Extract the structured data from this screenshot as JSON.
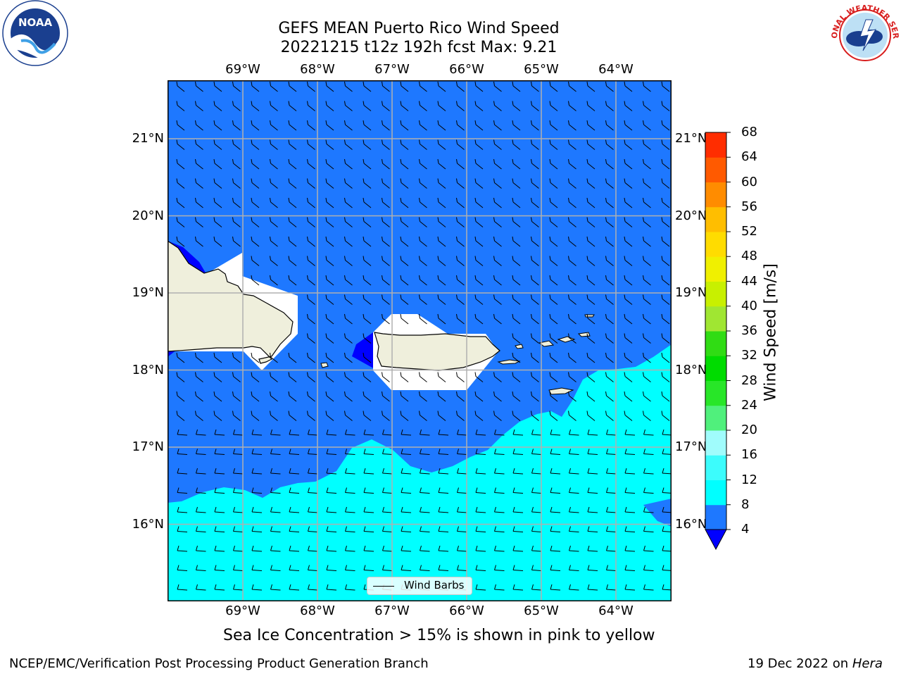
{
  "header": {
    "title_line1": "GEFS MEAN Puerto Rico Wind Speed",
    "title_line2": "20221215 t12z 192h fcst   Max: 9.21"
  },
  "logos": {
    "noaa_text": "NOAA",
    "nws_text": "NATIONAL WEATHER SERVICE"
  },
  "axes": {
    "lon_labels": [
      "69°W",
      "68°W",
      "67°W",
      "66°W",
      "65°W",
      "64°W"
    ],
    "lat_labels": [
      "21°N",
      "20°N",
      "19°N",
      "18°N",
      "17°N",
      "16°N"
    ],
    "lon_values": [
      -69,
      -68,
      -67,
      -66,
      -65,
      -64
    ],
    "lat_values": [
      21,
      20,
      19,
      18,
      17,
      16
    ]
  },
  "colorbar": {
    "label": "Wind Speed [m/s]",
    "ticks": [
      "68",
      "64",
      "60",
      "56",
      "52",
      "48",
      "44",
      "40",
      "36",
      "32",
      "28",
      "24",
      "20",
      "16",
      "12",
      "8",
      "4"
    ],
    "levels": [
      4,
      8,
      12,
      16,
      20,
      24,
      28,
      32,
      36,
      40,
      44,
      48,
      52,
      56,
      60,
      64,
      68
    ],
    "colors": [
      "#1e78ff",
      "#00ffff",
      "#3cfcfc",
      "#a0fcfc",
      "#50f07c",
      "#28e628",
      "#00dc00",
      "#30dc14",
      "#a0e632",
      "#c8f000",
      "#f0f000",
      "#ffdc00",
      "#ffbe00",
      "#ff8c00",
      "#ff5a00",
      "#ff2d00"
    ],
    "under_color": "#0000ff"
  },
  "legend": {
    "label": "Wind Barbs"
  },
  "caption": "Sea Ice Concentration > 15% is shown in pink to yellow",
  "footer": {
    "left": "NCEP/EMC/Verification Post Processing Product Generation Branch",
    "right_prefix": "19 Dec 2022 on ",
    "right_host": "Hera"
  },
  "map_colors": {
    "wind_4_8": "#1e78ff",
    "wind_8_12": "#00ffff",
    "wind_under_4": "#0000ff",
    "land": "#efefdc",
    "grid": "#b0b0b0",
    "missing": "#ffffff"
  }
}
